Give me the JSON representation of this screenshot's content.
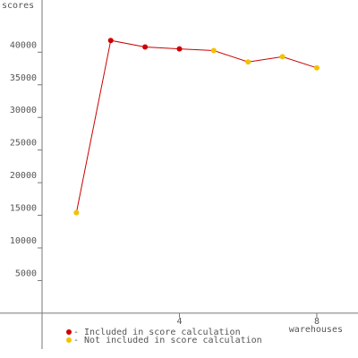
{
  "chart_data": {
    "type": "line",
    "y_label": "scores",
    "x_label": "warehouses",
    "x": [
      1,
      2,
      3,
      4,
      5,
      6,
      7,
      8
    ],
    "line_color": "#cc0000",
    "series": [
      {
        "name": "Included in score calculation",
        "color": "#cc0000",
        "values": [
          null,
          41800,
          40800,
          40500,
          null,
          null,
          null,
          null
        ]
      },
      {
        "name": "Not included in score calculation",
        "color": "#f2c200",
        "values": [
          15400,
          null,
          null,
          null,
          40250,
          38500,
          39300,
          37600
        ]
      }
    ],
    "xlim": [
      0,
      9.2
    ],
    "xticks": [
      4,
      8
    ],
    "ylim": [
      -5500,
      48000
    ],
    "yticks": [
      5000,
      10000,
      15000,
      20000,
      25000,
      30000,
      35000,
      40000
    ]
  }
}
